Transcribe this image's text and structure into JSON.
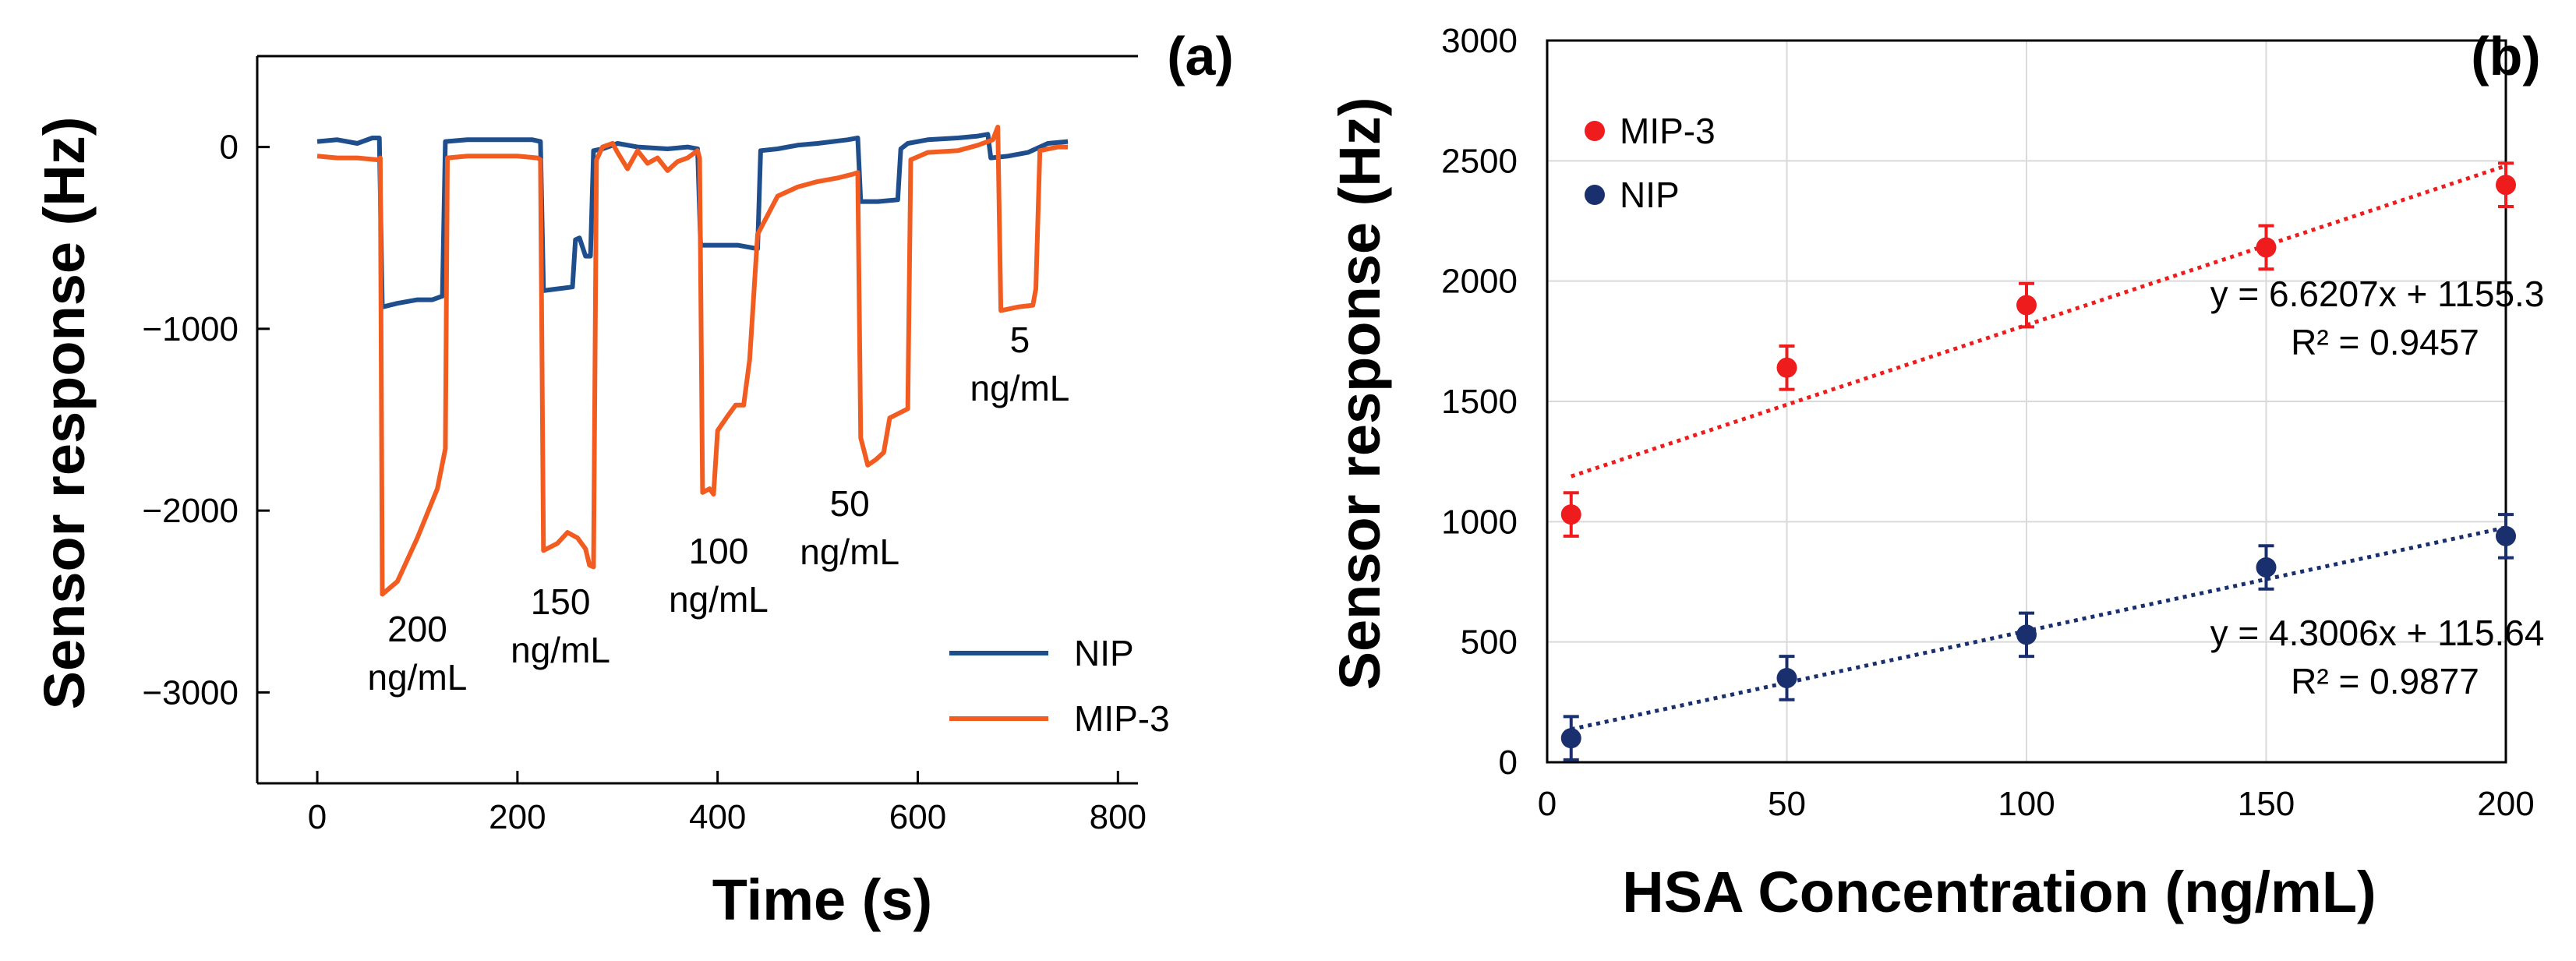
{
  "chart_data": [
    {
      "type": "line",
      "panel_label": "(a)",
      "xlabel": "Time (s)",
      "ylabel": "Sensor response (Hz)",
      "xlim": [
        -60,
        820
      ],
      "ylim": [
        -3500,
        500
      ],
      "x_ticks": [
        0,
        200,
        400,
        600,
        800
      ],
      "y_ticks": [
        0,
        -1000,
        -2000,
        -3000
      ],
      "x_tick_labels": [
        "0",
        "200",
        "400",
        "600",
        "800"
      ],
      "y_tick_labels": [
        "0",
        "−1000",
        "−2000",
        "−3000"
      ],
      "legend": {
        "position": "bottom-right",
        "entries": [
          "NIP",
          "MIP-3"
        ]
      },
      "series": [
        {
          "name": "NIP",
          "color": "#1f4e8c",
          "points": [
            [
              0,
              30
            ],
            [
              20,
              40
            ],
            [
              40,
              20
            ],
            [
              55,
              50
            ],
            [
              62,
              50
            ],
            [
              65,
              -880
            ],
            [
              80,
              -860
            ],
            [
              100,
              -840
            ],
            [
              115,
              -840
            ],
            [
              125,
              -820
            ],
            [
              128,
              30
            ],
            [
              150,
              40
            ],
            [
              175,
              40
            ],
            [
              200,
              40
            ],
            [
              215,
              40
            ],
            [
              223,
              30
            ],
            [
              226,
              -790
            ],
            [
              240,
              -780
            ],
            [
              255,
              -770
            ],
            [
              258,
              -510
            ],
            [
              262,
              -500
            ],
            [
              268,
              -600
            ],
            [
              273,
              -600
            ],
            [
              276,
              -20
            ],
            [
              285,
              -10
            ],
            [
              300,
              20
            ],
            [
              320,
              0
            ],
            [
              350,
              -10
            ],
            [
              370,
              0
            ],
            [
              380,
              -10
            ],
            [
              383,
              -540
            ],
            [
              400,
              -540
            ],
            [
              420,
              -540
            ],
            [
              440,
              -560
            ],
            [
              443,
              -20
            ],
            [
              460,
              -10
            ],
            [
              480,
              10
            ],
            [
              500,
              20
            ],
            [
              530,
              40
            ],
            [
              540,
              50
            ],
            [
              543,
              -300
            ],
            [
              560,
              -300
            ],
            [
              580,
              -290
            ],
            [
              583,
              -10
            ],
            [
              590,
              20
            ],
            [
              610,
              40
            ],
            [
              640,
              50
            ],
            [
              660,
              60
            ],
            [
              670,
              70
            ],
            [
              673,
              -60
            ],
            [
              690,
              -50
            ],
            [
              710,
              -30
            ],
            [
              730,
              20
            ],
            [
              750,
              30
            ]
          ]
        },
        {
          "name": "MIP-3",
          "color": "#f25c21",
          "points": [
            [
              0,
              -50
            ],
            [
              20,
              -60
            ],
            [
              40,
              -60
            ],
            [
              60,
              -70
            ],
            [
              63,
              -60
            ],
            [
              65,
              -2460
            ],
            [
              80,
              -2390
            ],
            [
              100,
              -2150
            ],
            [
              120,
              -1880
            ],
            [
              128,
              -1660
            ],
            [
              130,
              -60
            ],
            [
              150,
              -50
            ],
            [
              180,
              -50
            ],
            [
              200,
              -50
            ],
            [
              220,
              -60
            ],
            [
              223,
              -70
            ],
            [
              226,
              -2220
            ],
            [
              240,
              -2180
            ],
            [
              250,
              -2120
            ],
            [
              260,
              -2150
            ],
            [
              268,
              -2210
            ],
            [
              272,
              -2300
            ],
            [
              276,
              -2310
            ],
            [
              279,
              -70
            ],
            [
              285,
              0
            ],
            [
              295,
              20
            ],
            [
              300,
              -30
            ],
            [
              310,
              -120
            ],
            [
              320,
              -20
            ],
            [
              330,
              -90
            ],
            [
              340,
              -60
            ],
            [
              350,
              -130
            ],
            [
              360,
              -80
            ],
            [
              370,
              -60
            ],
            [
              380,
              -20
            ],
            [
              382,
              -60
            ],
            [
              385,
              -1900
            ],
            [
              392,
              -1880
            ],
            [
              396,
              -1910
            ],
            [
              400,
              -1560
            ],
            [
              410,
              -1480
            ],
            [
              418,
              -1420
            ],
            [
              426,
              -1420
            ],
            [
              432,
              -1170
            ],
            [
              440,
              -480
            ],
            [
              460,
              -270
            ],
            [
              480,
              -220
            ],
            [
              500,
              -190
            ],
            [
              520,
              -170
            ],
            [
              535,
              -150
            ],
            [
              540,
              -140
            ],
            [
              543,
              -1600
            ],
            [
              550,
              -1750
            ],
            [
              558,
              -1720
            ],
            [
              566,
              -1680
            ],
            [
              572,
              -1490
            ],
            [
              590,
              -1440
            ],
            [
              593,
              -70
            ],
            [
              610,
              -30
            ],
            [
              640,
              -20
            ],
            [
              660,
              10
            ],
            [
              675,
              40
            ],
            [
              680,
              110
            ],
            [
              683,
              -900
            ],
            [
              700,
              -880
            ],
            [
              715,
              -870
            ],
            [
              718,
              -780
            ],
            [
              722,
              -20
            ],
            [
              740,
              0
            ],
            [
              750,
              0
            ]
          ]
        }
      ],
      "annotations": [
        {
          "lines": [
            "200",
            "ng/mL"
          ],
          "x": 100,
          "y": -2720
        },
        {
          "lines": [
            "150",
            "ng/mL"
          ],
          "x": 243,
          "y": -2570
        },
        {
          "lines": [
            "100",
            "ng/mL"
          ],
          "x": 401,
          "y": -2290
        },
        {
          "lines": [
            "50",
            "ng/mL"
          ],
          "x": 532,
          "y": -2030
        },
        {
          "lines": [
            "5",
            "ng/mL"
          ],
          "x": 702,
          "y": -1130
        }
      ]
    },
    {
      "type": "scatter",
      "panel_label": "(b)",
      "xlabel": "HSA Concentration (ng/mL)",
      "ylabel": "Sensor response (Hz)",
      "xlim": [
        0,
        200
      ],
      "ylim": [
        0,
        3000
      ],
      "x_ticks": [
        0,
        50,
        100,
        150,
        200
      ],
      "y_ticks": [
        0,
        500,
        1000,
        1500,
        2000,
        2500,
        3000
      ],
      "x_tick_labels": [
        "0",
        "50",
        "100",
        "150",
        "200"
      ],
      "y_tick_labels": [
        "0",
        "500",
        "1000",
        "1500",
        "2000",
        "2500",
        "3000"
      ],
      "grid": true,
      "legend": {
        "position": "top-left",
        "entries": [
          "MIP-3",
          "NIP"
        ]
      },
      "series": [
        {
          "name": "MIP-3",
          "color": "#ee1c1c",
          "x": [
            5,
            50,
            100,
            150,
            200
          ],
          "y": [
            1030,
            1640,
            1900,
            2140,
            2400
          ],
          "yerr": [
            90,
            90,
            90,
            90,
            90
          ],
          "trendline": {
            "slope": 6.6207,
            "intercept": 1155.3,
            "x_range": [
              5,
              200
            ]
          },
          "equation": "y = 6.6207x + 1155.3",
          "r2": "R² = 0.9457"
        },
        {
          "name": "NIP",
          "color": "#1a2f6e",
          "x": [
            5,
            50,
            100,
            150,
            200
          ],
          "y": [
            100,
            350,
            530,
            810,
            940
          ],
          "yerr": [
            90,
            90,
            90,
            90,
            90
          ],
          "trendline": {
            "slope": 4.3006,
            "intercept": 115.64,
            "x_range": [
              5,
              200
            ]
          },
          "equation": "y = 4.3006x + 115.64",
          "r2": "R² = 0.9877"
        }
      ]
    }
  ]
}
